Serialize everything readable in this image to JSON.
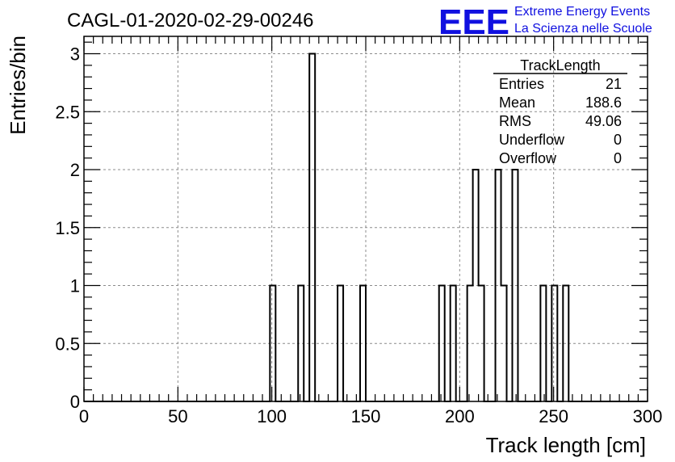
{
  "title": "CAGL-01-2020-02-29-00246",
  "logo": {
    "mark": "EEE",
    "line1": "Extreme Energy Events",
    "line2": "La Scienza nelle Scuole",
    "color": "#1010e0"
  },
  "stats": {
    "title": "TrackLength",
    "rows": [
      {
        "label": "Entries",
        "value": "21"
      },
      {
        "label": "Mean",
        "value": "188.6"
      },
      {
        "label": "RMS",
        "value": "49.06"
      },
      {
        "label": "Underflow",
        "value": "0"
      },
      {
        "label": "Overflow",
        "value": "0"
      }
    ]
  },
  "chart_data": {
    "type": "bar",
    "histogram": true,
    "xlabel": "Track length [cm]",
    "ylabel": "Entries/bin",
    "xlim": [
      0,
      300
    ],
    "ylim": [
      0,
      3.15
    ],
    "bin_width": 3,
    "grid": true,
    "xticks": [
      0,
      50,
      100,
      150,
      200,
      250,
      300
    ],
    "xtick_labels": [
      "0",
      "50",
      "100",
      "150",
      "200",
      "250",
      "300"
    ],
    "yticks": [
      0,
      0.5,
      1,
      1.5,
      2,
      2.5,
      3
    ],
    "ytick_labels": [
      "0",
      "0.5",
      "1",
      "1.5",
      "2",
      "2.5",
      "3"
    ],
    "bins": [
      {
        "x": 99,
        "value": 1
      },
      {
        "x": 114,
        "value": 1
      },
      {
        "x": 120,
        "value": 3
      },
      {
        "x": 135,
        "value": 1
      },
      {
        "x": 147,
        "value": 1
      },
      {
        "x": 189,
        "value": 1
      },
      {
        "x": 195,
        "value": 1
      },
      {
        "x": 204,
        "value": 1
      },
      {
        "x": 207,
        "value": 2
      },
      {
        "x": 210,
        "value": 1
      },
      {
        "x": 219,
        "value": 2
      },
      {
        "x": 222,
        "value": 1
      },
      {
        "x": 228,
        "value": 2
      },
      {
        "x": 243,
        "value": 1
      },
      {
        "x": 249,
        "value": 1
      },
      {
        "x": 255,
        "value": 1
      }
    ]
  }
}
